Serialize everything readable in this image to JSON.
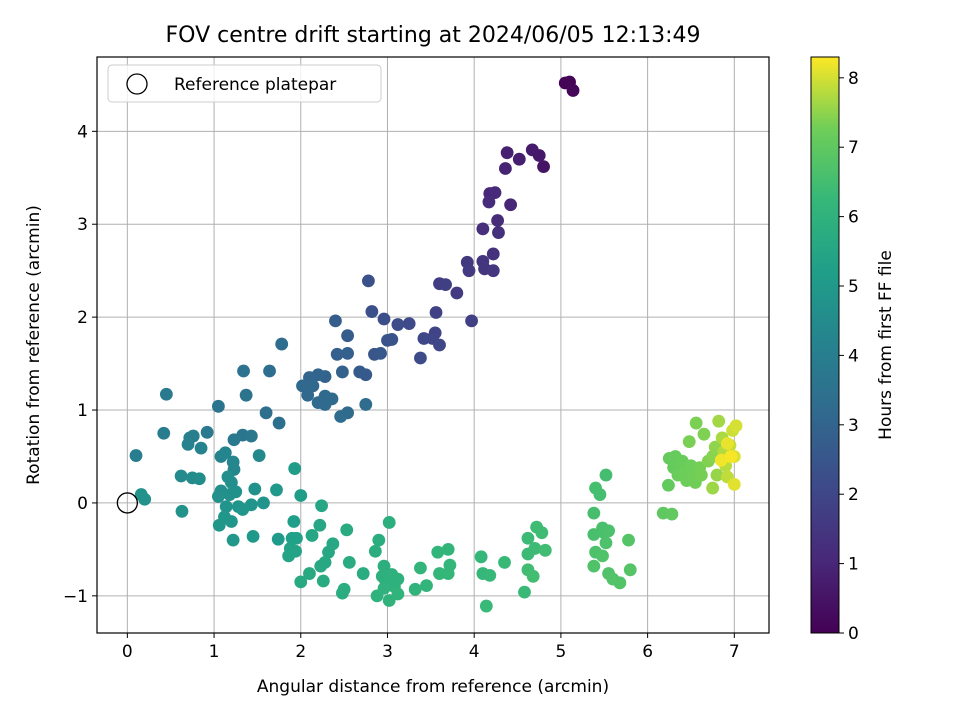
{
  "chart_data": {
    "type": "scatter",
    "title": "FOV centre drift starting at 2024/06/05 12:13:49",
    "xlabel": "Angular distance from reference (arcmin)",
    "ylabel": "Rotation from reference (arcmin)",
    "xlim": [
      -0.35,
      7.4
    ],
    "ylim": [
      -1.4,
      4.8
    ],
    "xticks": [
      0,
      1,
      2,
      3,
      4,
      5,
      6,
      7
    ],
    "yticks": [
      -1,
      0,
      1,
      2,
      3,
      4
    ],
    "grid": true,
    "legend": {
      "position": "top-left",
      "entries": [
        "Reference platepar"
      ]
    },
    "reference_point": {
      "x": 0,
      "y": 0
    },
    "colorbar": {
      "label": "Hours from first FF file",
      "range": [
        0,
        8.3
      ],
      "ticks": [
        0,
        1,
        2,
        3,
        4,
        5,
        6,
        7,
        8
      ],
      "colormap": "viridis"
    },
    "points": [
      {
        "x": 5.05,
        "y": 4.52,
        "t": 0.05
      },
      {
        "x": 5.1,
        "y": 4.53,
        "t": 0.1
      },
      {
        "x": 5.14,
        "y": 4.44,
        "t": 0.15
      },
      {
        "x": 4.8,
        "y": 3.62,
        "t": 0.5
      },
      {
        "x": 4.75,
        "y": 3.74,
        "t": 0.6
      },
      {
        "x": 4.67,
        "y": 3.8,
        "t": 0.7
      },
      {
        "x": 4.52,
        "y": 3.7,
        "t": 0.8
      },
      {
        "x": 4.38,
        "y": 3.77,
        "t": 0.85
      },
      {
        "x": 4.36,
        "y": 3.6,
        "t": 0.9
      },
      {
        "x": 4.42,
        "y": 3.21,
        "t": 1.0
      },
      {
        "x": 4.18,
        "y": 3.33,
        "t": 1.05
      },
      {
        "x": 4.24,
        "y": 3.34,
        "t": 1.1
      },
      {
        "x": 4.27,
        "y": 3.04,
        "t": 1.15
      },
      {
        "x": 4.17,
        "y": 3.24,
        "t": 1.2
      },
      {
        "x": 4.1,
        "y": 2.95,
        "t": 1.25
      },
      {
        "x": 4.28,
        "y": 2.91,
        "t": 1.3
      },
      {
        "x": 4.22,
        "y": 2.68,
        "t": 1.35
      },
      {
        "x": 4.1,
        "y": 2.6,
        "t": 1.4
      },
      {
        "x": 4.12,
        "y": 2.52,
        "t": 1.45
      },
      {
        "x": 4.22,
        "y": 2.5,
        "t": 1.5
      },
      {
        "x": 3.92,
        "y": 2.59,
        "t": 1.55
      },
      {
        "x": 3.94,
        "y": 2.5,
        "t": 1.6
      },
      {
        "x": 3.8,
        "y": 2.26,
        "t": 1.65
      },
      {
        "x": 3.6,
        "y": 2.36,
        "t": 1.7
      },
      {
        "x": 3.67,
        "y": 2.35,
        "t": 1.75
      },
      {
        "x": 3.97,
        "y": 1.96,
        "t": 1.8
      },
      {
        "x": 3.56,
        "y": 2.05,
        "t": 1.85
      },
      {
        "x": 3.55,
        "y": 1.83,
        "t": 1.9
      },
      {
        "x": 3.52,
        "y": 1.77,
        "t": 1.95
      },
      {
        "x": 3.6,
        "y": 1.7,
        "t": 2.0
      },
      {
        "x": 3.42,
        "y": 1.77,
        "t": 2.05
      },
      {
        "x": 3.25,
        "y": 1.93,
        "t": 2.1
      },
      {
        "x": 3.38,
        "y": 1.56,
        "t": 2.15
      },
      {
        "x": 3.12,
        "y": 1.92,
        "t": 2.2
      },
      {
        "x": 2.96,
        "y": 1.98,
        "t": 2.25
      },
      {
        "x": 2.82,
        "y": 2.06,
        "t": 2.3
      },
      {
        "x": 2.78,
        "y": 2.39,
        "t": 2.35
      },
      {
        "x": 3.0,
        "y": 1.75,
        "t": 2.4
      },
      {
        "x": 3.05,
        "y": 1.76,
        "t": 2.45
      },
      {
        "x": 2.85,
        "y": 1.6,
        "t": 2.5
      },
      {
        "x": 2.92,
        "y": 1.61,
        "t": 2.55
      },
      {
        "x": 2.75,
        "y": 1.38,
        "t": 2.6
      },
      {
        "x": 2.68,
        "y": 1.41,
        "t": 2.65
      },
      {
        "x": 2.54,
        "y": 1.8,
        "t": 2.7
      },
      {
        "x": 2.4,
        "y": 1.96,
        "t": 2.75
      },
      {
        "x": 2.42,
        "y": 1.6,
        "t": 2.8
      },
      {
        "x": 2.54,
        "y": 1.61,
        "t": 2.85
      },
      {
        "x": 2.48,
        "y": 1.41,
        "t": 2.9
      },
      {
        "x": 2.28,
        "y": 1.36,
        "t": 2.95
      },
      {
        "x": 2.2,
        "y": 1.38,
        "t": 3.0
      },
      {
        "x": 2.1,
        "y": 1.35,
        "t": 3.05
      },
      {
        "x": 2.02,
        "y": 1.26,
        "t": 3.1
      },
      {
        "x": 2.14,
        "y": 1.26,
        "t": 3.12
      },
      {
        "x": 2.08,
        "y": 1.16,
        "t": 3.14
      },
      {
        "x": 2.28,
        "y": 1.15,
        "t": 3.16
      },
      {
        "x": 2.2,
        "y": 1.08,
        "t": 3.18
      },
      {
        "x": 2.28,
        "y": 1.06,
        "t": 3.2
      },
      {
        "x": 2.36,
        "y": 1.12,
        "t": 3.22
      },
      {
        "x": 2.54,
        "y": 0.97,
        "t": 3.24
      },
      {
        "x": 2.46,
        "y": 0.93,
        "t": 3.26
      },
      {
        "x": 2.75,
        "y": 1.06,
        "t": 3.28
      },
      {
        "x": 1.78,
        "y": 1.71,
        "t": 3.3
      },
      {
        "x": 1.64,
        "y": 1.42,
        "t": 3.35
      },
      {
        "x": 1.6,
        "y": 0.97,
        "t": 3.4
      },
      {
        "x": 1.75,
        "y": 0.86,
        "t": 3.45
      },
      {
        "x": 1.34,
        "y": 1.42,
        "t": 3.5
      },
      {
        "x": 1.37,
        "y": 1.16,
        "t": 3.55
      },
      {
        "x": 1.05,
        "y": 1.04,
        "t": 3.6
      },
      {
        "x": 1.33,
        "y": 0.73,
        "t": 3.65
      },
      {
        "x": 1.43,
        "y": 0.72,
        "t": 3.7
      },
      {
        "x": 1.23,
        "y": 0.68,
        "t": 3.75
      },
      {
        "x": 0.92,
        "y": 0.76,
        "t": 3.8
      },
      {
        "x": 0.45,
        "y": 1.17,
        "t": 3.85
      },
      {
        "x": 0.42,
        "y": 0.75,
        "t": 3.9
      },
      {
        "x": 0.1,
        "y": 0.51,
        "t": 3.95
      },
      {
        "x": 0.72,
        "y": 0.7,
        "t": 4.0
      },
      {
        "x": 0.76,
        "y": 0.72,
        "t": 4.05
      },
      {
        "x": 0.7,
        "y": 0.63,
        "t": 4.1
      },
      {
        "x": 0.85,
        "y": 0.59,
        "t": 4.15
      },
      {
        "x": 1.08,
        "y": 0.5,
        "t": 4.2
      },
      {
        "x": 1.13,
        "y": 0.54,
        "t": 4.25
      },
      {
        "x": 1.22,
        "y": 0.44,
        "t": 4.3
      },
      {
        "x": 1.23,
        "y": 0.36,
        "t": 4.35
      },
      {
        "x": 1.52,
        "y": 0.51,
        "t": 4.4
      },
      {
        "x": 0.62,
        "y": 0.29,
        "t": 4.45
      },
      {
        "x": 0.75,
        "y": 0.27,
        "t": 4.5
      },
      {
        "x": 0.83,
        "y": 0.26,
        "t": 4.55
      },
      {
        "x": 1.16,
        "y": 0.28,
        "t": 4.6
      },
      {
        "x": 1.2,
        "y": 0.22,
        "t": 4.62
      },
      {
        "x": 1.08,
        "y": 0.13,
        "t": 4.64
      },
      {
        "x": 1.05,
        "y": 0.07,
        "t": 4.66
      },
      {
        "x": 1.18,
        "y": 0.09,
        "t": 4.68
      },
      {
        "x": 1.25,
        "y": 0.12,
        "t": 4.7
      },
      {
        "x": 1.47,
        "y": 0.15,
        "t": 4.72
      },
      {
        "x": 0.16,
        "y": 0.09,
        "t": 4.74
      },
      {
        "x": 0.2,
        "y": 0.04,
        "t": 4.76
      },
      {
        "x": 0.63,
        "y": -0.09,
        "t": 4.78
      },
      {
        "x": 1.14,
        "y": -0.04,
        "t": 4.8
      },
      {
        "x": 1.28,
        "y": -0.04,
        "t": 4.82
      },
      {
        "x": 1.43,
        "y": -0.02,
        "t": 4.84
      },
      {
        "x": 1.57,
        "y": 0.0,
        "t": 4.86
      },
      {
        "x": 1.33,
        "y": -0.07,
        "t": 4.88
      },
      {
        "x": 1.12,
        "y": -0.15,
        "t": 4.9
      },
      {
        "x": 1.06,
        "y": -0.24,
        "t": 4.92
      },
      {
        "x": 1.2,
        "y": -0.2,
        "t": 4.94
      },
      {
        "x": 1.22,
        "y": -0.4,
        "t": 4.96
      },
      {
        "x": 1.45,
        "y": -0.36,
        "t": 4.98
      },
      {
        "x": 1.72,
        "y": 0.14,
        "t": 5.0
      },
      {
        "x": 1.74,
        "y": -0.39,
        "t": 5.05
      },
      {
        "x": 1.93,
        "y": 0.37,
        "t": 5.1
      },
      {
        "x": 2.0,
        "y": 0.08,
        "t": 5.15
      },
      {
        "x": 1.92,
        "y": -0.2,
        "t": 5.2
      },
      {
        "x": 1.9,
        "y": -0.38,
        "t": 5.25
      },
      {
        "x": 1.95,
        "y": -0.38,
        "t": 5.3
      },
      {
        "x": 1.88,
        "y": -0.49,
        "t": 5.35
      },
      {
        "x": 1.94,
        "y": -0.52,
        "t": 5.4
      },
      {
        "x": 1.86,
        "y": -0.57,
        "t": 5.45
      },
      {
        "x": 2.13,
        "y": -0.35,
        "t": 5.5
      },
      {
        "x": 2.22,
        "y": -0.24,
        "t": 5.52
      },
      {
        "x": 2.24,
        "y": -0.03,
        "t": 5.54
      },
      {
        "x": 2.32,
        "y": -0.53,
        "t": 5.56
      },
      {
        "x": 2.37,
        "y": -0.44,
        "t": 5.58
      },
      {
        "x": 2.23,
        "y": -0.68,
        "t": 5.6
      },
      {
        "x": 2.28,
        "y": -0.64,
        "t": 5.62
      },
      {
        "x": 2.1,
        "y": -0.76,
        "t": 5.64
      },
      {
        "x": 2.0,
        "y": -0.85,
        "t": 5.66
      },
      {
        "x": 2.26,
        "y": -0.84,
        "t": 5.68
      },
      {
        "x": 2.53,
        "y": -0.29,
        "t": 5.7
      },
      {
        "x": 2.56,
        "y": -0.64,
        "t": 5.72
      },
      {
        "x": 2.72,
        "y": -0.76,
        "t": 5.74
      },
      {
        "x": 2.48,
        "y": -0.97,
        "t": 5.76
      },
      {
        "x": 2.5,
        "y": -0.93,
        "t": 5.78
      },
      {
        "x": 2.86,
        "y": -0.52,
        "t": 5.8
      },
      {
        "x": 2.9,
        "y": -0.4,
        "t": 5.82
      },
      {
        "x": 3.02,
        "y": -0.21,
        "t": 5.84
      },
      {
        "x": 2.96,
        "y": -0.68,
        "t": 5.86
      },
      {
        "x": 2.94,
        "y": -0.79,
        "t": 5.88
      },
      {
        "x": 2.98,
        "y": -0.84,
        "t": 5.9
      },
      {
        "x": 3.05,
        "y": -0.77,
        "t": 5.92
      },
      {
        "x": 3.12,
        "y": -0.82,
        "t": 5.94
      },
      {
        "x": 3.08,
        "y": -0.9,
        "t": 5.96
      },
      {
        "x": 2.96,
        "y": -0.92,
        "t": 5.98
      },
      {
        "x": 2.88,
        "y": -1.0,
        "t": 6.0
      },
      {
        "x": 3.02,
        "y": -1.05,
        "t": 6.02
      },
      {
        "x": 3.12,
        "y": -0.98,
        "t": 6.04
      },
      {
        "x": 3.32,
        "y": -0.93,
        "t": 6.06
      },
      {
        "x": 3.45,
        "y": -0.89,
        "t": 6.08
      },
      {
        "x": 3.38,
        "y": -0.7,
        "t": 6.1
      },
      {
        "x": 3.58,
        "y": -0.53,
        "t": 6.12
      },
      {
        "x": 3.7,
        "y": -0.5,
        "t": 6.14
      },
      {
        "x": 3.72,
        "y": -0.67,
        "t": 6.16
      },
      {
        "x": 3.6,
        "y": -0.76,
        "t": 6.18
      },
      {
        "x": 3.7,
        "y": -0.76,
        "t": 6.2
      },
      {
        "x": 4.08,
        "y": -0.58,
        "t": 6.22
      },
      {
        "x": 4.1,
        "y": -0.76,
        "t": 6.24
      },
      {
        "x": 4.18,
        "y": -0.78,
        "t": 6.26
      },
      {
        "x": 4.35,
        "y": -0.64,
        "t": 6.28
      },
      {
        "x": 4.14,
        "y": -1.11,
        "t": 6.3
      },
      {
        "x": 4.58,
        "y": -0.96,
        "t": 6.32
      },
      {
        "x": 4.62,
        "y": -0.38,
        "t": 6.34
      },
      {
        "x": 4.62,
        "y": -0.55,
        "t": 6.36
      },
      {
        "x": 4.7,
        "y": -0.49,
        "t": 6.38
      },
      {
        "x": 4.72,
        "y": -0.26,
        "t": 6.4
      },
      {
        "x": 4.78,
        "y": -0.32,
        "t": 6.42
      },
      {
        "x": 4.82,
        "y": -0.51,
        "t": 6.44
      },
      {
        "x": 4.62,
        "y": -0.72,
        "t": 6.46
      },
      {
        "x": 4.68,
        "y": -0.79,
        "t": 6.48
      },
      {
        "x": 5.52,
        "y": 0.3,
        "t": 6.5
      },
      {
        "x": 5.4,
        "y": 0.16,
        "t": 6.52
      },
      {
        "x": 5.45,
        "y": 0.09,
        "t": 6.54
      },
      {
        "x": 5.38,
        "y": -0.11,
        "t": 6.56
      },
      {
        "x": 5.38,
        "y": -0.34,
        "t": 6.58
      },
      {
        "x": 5.48,
        "y": -0.27,
        "t": 6.6
      },
      {
        "x": 5.5,
        "y": -0.32,
        "t": 6.62
      },
      {
        "x": 5.55,
        "y": -0.3,
        "t": 6.64
      },
      {
        "x": 5.52,
        "y": -0.43,
        "t": 6.66
      },
      {
        "x": 5.4,
        "y": -0.53,
        "t": 6.68
      },
      {
        "x": 5.48,
        "y": -0.57,
        "t": 6.7
      },
      {
        "x": 5.38,
        "y": -0.68,
        "t": 6.72
      },
      {
        "x": 5.55,
        "y": -0.76,
        "t": 6.74
      },
      {
        "x": 5.6,
        "y": -0.82,
        "t": 6.76
      },
      {
        "x": 5.68,
        "y": -0.86,
        "t": 6.78
      },
      {
        "x": 5.78,
        "y": -0.4,
        "t": 6.8
      },
      {
        "x": 5.8,
        "y": -0.72,
        "t": 6.82
      },
      {
        "x": 6.18,
        "y": -0.11,
        "t": 7.0
      },
      {
        "x": 6.28,
        "y": -0.12,
        "t": 7.02
      },
      {
        "x": 6.24,
        "y": 0.19,
        "t": 7.05
      },
      {
        "x": 6.25,
        "y": 0.48,
        "t": 7.08
      },
      {
        "x": 6.3,
        "y": 0.38,
        "t": 7.1
      },
      {
        "x": 6.32,
        "y": 0.5,
        "t": 7.12
      },
      {
        "x": 6.36,
        "y": 0.42,
        "t": 7.14
      },
      {
        "x": 6.4,
        "y": 0.45,
        "t": 7.16
      },
      {
        "x": 6.35,
        "y": 0.3,
        "t": 7.18
      },
      {
        "x": 6.42,
        "y": 0.32,
        "t": 7.2
      },
      {
        "x": 6.45,
        "y": 0.24,
        "t": 7.22
      },
      {
        "x": 6.5,
        "y": 0.4,
        "t": 7.24
      },
      {
        "x": 6.52,
        "y": 0.3,
        "t": 7.26
      },
      {
        "x": 6.55,
        "y": 0.22,
        "t": 7.28
      },
      {
        "x": 6.6,
        "y": 0.38,
        "t": 7.3
      },
      {
        "x": 6.62,
        "y": 0.3,
        "t": 7.32
      },
      {
        "x": 6.48,
        "y": 0.66,
        "t": 7.34
      },
      {
        "x": 6.56,
        "y": 0.86,
        "t": 7.36
      },
      {
        "x": 6.65,
        "y": 0.74,
        "t": 7.38
      },
      {
        "x": 6.7,
        "y": 0.45,
        "t": 7.4
      },
      {
        "x": 6.75,
        "y": 0.5,
        "t": 7.45
      },
      {
        "x": 6.78,
        "y": 0.6,
        "t": 7.5
      },
      {
        "x": 6.8,
        "y": 0.3,
        "t": 7.55
      },
      {
        "x": 6.75,
        "y": 0.16,
        "t": 7.6
      },
      {
        "x": 6.82,
        "y": 0.88,
        "t": 7.65
      },
      {
        "x": 6.86,
        "y": 0.7,
        "t": 7.7
      },
      {
        "x": 6.88,
        "y": 0.55,
        "t": 7.75
      },
      {
        "x": 6.9,
        "y": 0.4,
        "t": 7.8
      },
      {
        "x": 6.92,
        "y": 0.28,
        "t": 7.85
      },
      {
        "x": 6.95,
        "y": 0.62,
        "t": 7.9
      },
      {
        "x": 6.98,
        "y": 0.78,
        "t": 7.95
      },
      {
        "x": 7.02,
        "y": 0.83,
        "t": 8.0
      },
      {
        "x": 7.0,
        "y": 0.5,
        "t": 8.05
      },
      {
        "x": 7.0,
        "y": 0.2,
        "t": 8.1
      },
      {
        "x": 6.92,
        "y": 0.64,
        "t": 8.15
      },
      {
        "x": 6.85,
        "y": 0.46,
        "t": 8.2
      },
      {
        "x": 6.96,
        "y": 0.5,
        "t": 8.25
      }
    ]
  }
}
